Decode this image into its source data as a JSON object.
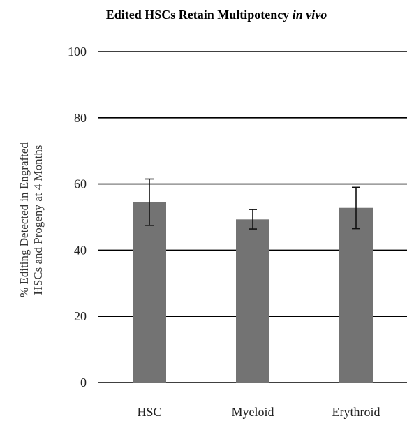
{
  "chart_data": {
    "type": "bar",
    "title": {
      "main": "Edited HSCs Retain Multipotency ",
      "italic": "in vivo"
    },
    "ylabel": {
      "line1": "% Editing Detected in Engrafted",
      "line2": "HSCs and Progeny at 4 Months"
    },
    "xlabel": "",
    "categories": [
      "HSC",
      "Myeloid",
      "Erythroid"
    ],
    "values": [
      54.5,
      49.3,
      52.8
    ],
    "error_low": [
      47.5,
      46.4,
      46.5
    ],
    "error_high": [
      61.5,
      52.3,
      59.0
    ],
    "ylim": [
      0,
      100
    ],
    "yticks": [
      0,
      20,
      40,
      60,
      80,
      100
    ],
    "grid": true,
    "legend": "none",
    "colors": {
      "bar": "#737373",
      "grid": "#000000",
      "error": "#111111"
    }
  }
}
